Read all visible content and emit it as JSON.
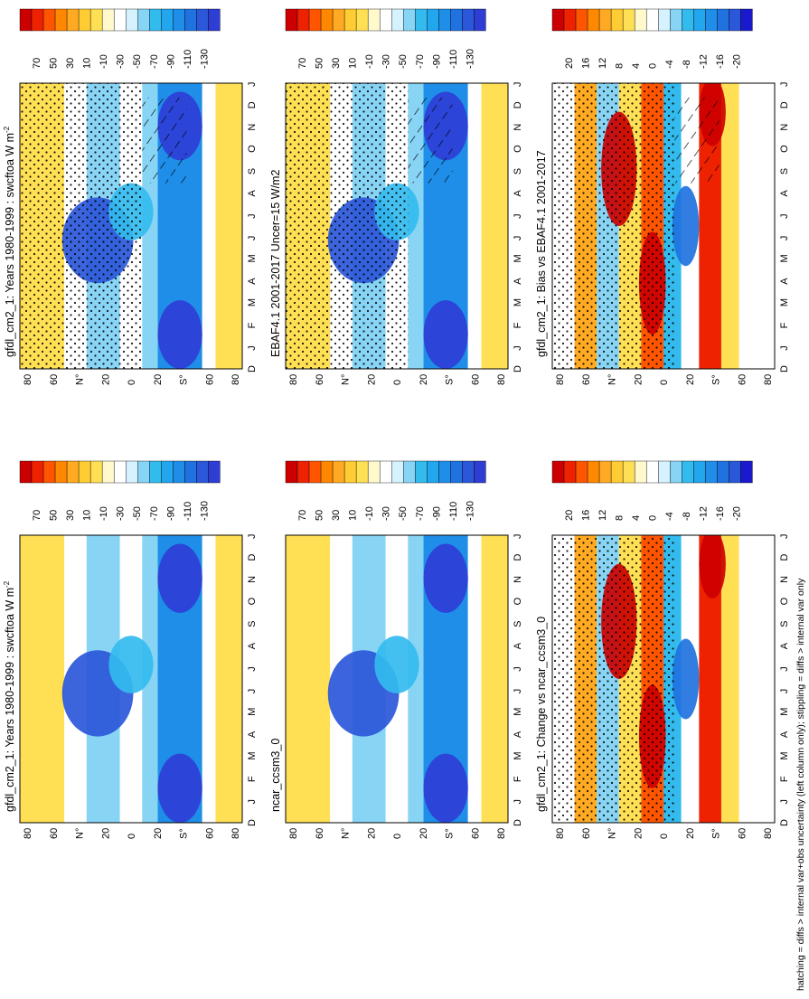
{
  "figure": {
    "footnote": "hatching = diffs > internal var+obs uncertainty (left column only); stippling = diffs > internal var only"
  },
  "chart_data": [
    {
      "type": "heatmap",
      "id": "left-top",
      "title": "gfdl_cm2_1: Years 1980-1999 : swcftoa W m",
      "title_sup": "-2",
      "colorbar": {
        "tick_labels": [
          "70",
          "50",
          "30",
          "10",
          "-10",
          "-30",
          "-50",
          "-70",
          "-90",
          "-110",
          "-130"
        ],
        "levels": [
          70,
          50,
          30,
          10,
          -10,
          -30,
          -50,
          -70,
          -90,
          -110,
          -130
        ]
      }
    },
    {
      "type": "heatmap",
      "id": "left-middle",
      "title": "EBAF4.1 2001-2017 Uncer=15 W/m2",
      "colorbar": {
        "tick_labels": [
          "70",
          "50",
          "30",
          "10",
          "-10",
          "-30",
          "-50",
          "-70",
          "-90",
          "-110",
          "-130"
        ],
        "levels": [
          70,
          50,
          30,
          10,
          -10,
          -30,
          -50,
          -70,
          -90,
          -110,
          -130
        ]
      }
    },
    {
      "type": "heatmap",
      "id": "left-bottom",
      "title": "gfdl_cm2_1: Bias vs EBAF4.1 2001-2017",
      "colorbar": {
        "tick_labels": [
          "20",
          "16",
          "12",
          "8",
          "4",
          "0",
          "-4",
          "-8",
          "-12",
          "-16",
          "-20"
        ],
        "levels": [
          20,
          16,
          12,
          8,
          4,
          0,
          -4,
          -8,
          -12,
          -16,
          -20
        ]
      }
    },
    {
      "type": "heatmap",
      "id": "right-top",
      "title": "gfdl_cm2_1: Years 1980-1999 : swcftoa W m",
      "title_sup": "-2",
      "colorbar": {
        "tick_labels": [
          "70",
          "50",
          "30",
          "10",
          "-10",
          "-30",
          "-50",
          "-70",
          "-90",
          "-110",
          "-130"
        ],
        "levels": [
          70,
          50,
          30,
          10,
          -10,
          -30,
          -50,
          -70,
          -90,
          -110,
          -130
        ]
      }
    },
    {
      "type": "heatmap",
      "id": "right-middle",
      "title": "ncar_ccsm3_0",
      "colorbar": {
        "tick_labels": [
          "70",
          "50",
          "30",
          "10",
          "-10",
          "-30",
          "-50",
          "-70",
          "-90",
          "-110",
          "-130"
        ],
        "levels": [
          70,
          50,
          30,
          10,
          -10,
          -30,
          -50,
          -70,
          -90,
          -110,
          -130
        ]
      }
    },
    {
      "type": "heatmap",
      "id": "right-bottom",
      "title": "gfdl_cm2_1: Change vs ncar_ccsm3_0",
      "colorbar": {
        "tick_labels": [
          "20",
          "16",
          "12",
          "8",
          "4",
          "0",
          "-4",
          "-8",
          "-12",
          "-16",
          "-20"
        ],
        "levels": [
          20,
          16,
          12,
          8,
          4,
          0,
          -4,
          -8,
          -12,
          -16,
          -20
        ]
      }
    }
  ],
  "axes": {
    "month_labels": [
      "D",
      "J",
      "F",
      "M",
      "A",
      "M",
      "J",
      "J",
      "A",
      "S",
      "O",
      "N",
      "D",
      "J"
    ],
    "lat_labels": [
      "80",
      "60",
      "N°",
      "20",
      "0",
      "20",
      "S°",
      "60",
      "80"
    ],
    "lat_values": [
      80,
      60,
      40,
      20,
      0,
      -20,
      -40,
      -60,
      -80
    ]
  },
  "colors": {
    "palette": [
      "#cc0000",
      "#ee2200",
      "#ff5500",
      "#ff8800",
      "#ffaa22",
      "#ffcc33",
      "#ffe055",
      "#fff9cc",
      "#ffffff",
      "#d6f2ff",
      "#88d4f5",
      "#33bbee",
      "#22a6ee",
      "#1f8ee8",
      "#1f72e0",
      "#2b57d9",
      "#2e3ed5",
      "#1a1acc",
      "#8a8a9a"
    ]
  }
}
